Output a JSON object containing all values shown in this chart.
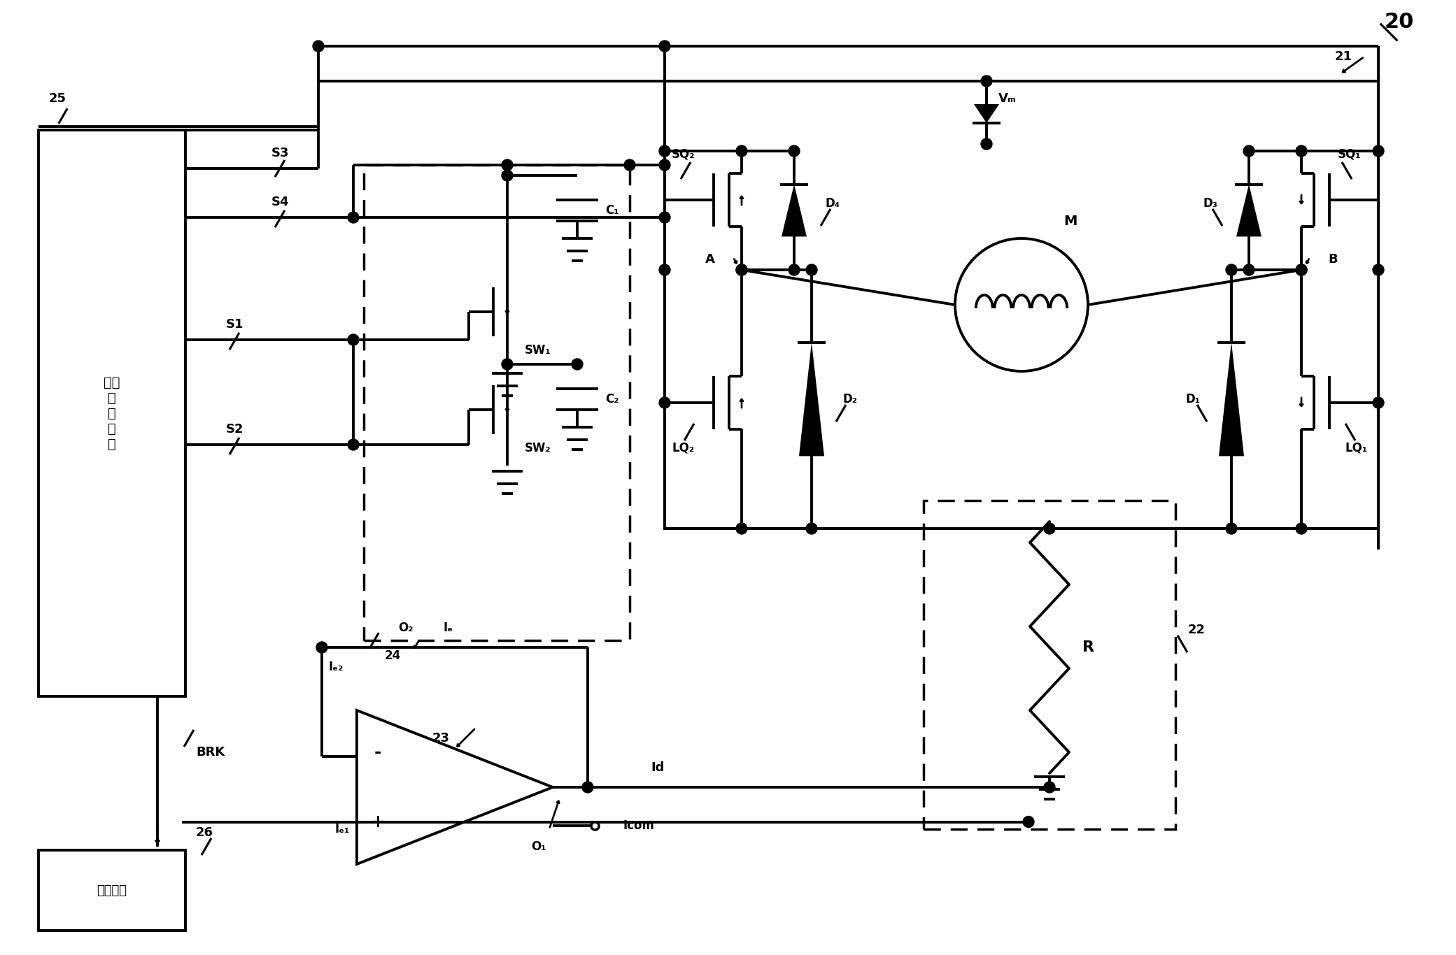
{
  "bg": "#ffffff",
  "lc": "#000000",
  "lw": 2.8,
  "fw": 20.81,
  "fh": 13.66,
  "labels": {
    "title": "20",
    "n25": "25",
    "n21": "21",
    "n22": "22",
    "n23": "23",
    "n24": "24",
    "n26": "26",
    "S3": "S3",
    "S4": "S4",
    "S1": "S1",
    "S2": "S2",
    "SW1": "SW₁",
    "SW2": "SW₂",
    "C1": "C₁",
    "C2": "C₂",
    "SQ1": "SQ₁",
    "SQ2": "SQ₂",
    "LQ1": "LQ₁",
    "LQ2": "LQ₂",
    "D1": "D₁",
    "D2": "D₂",
    "D3": "D₃",
    "D4": "D₄",
    "Vm": "Vₘ",
    "M": "M",
    "A": "A",
    "B": "B",
    "BRK": "BRK",
    "Ie": "Iₑ",
    "Ie1": "Iₑ₁",
    "Ie2": "Iₑ₂",
    "Id": "Id",
    "Icom": "Icom",
    "O1": "O₁",
    "O2": "O₂",
    "R": "R",
    "state_ctrl": "状态\n控\n制\n电\n路",
    "brake": "制动电路"
  }
}
